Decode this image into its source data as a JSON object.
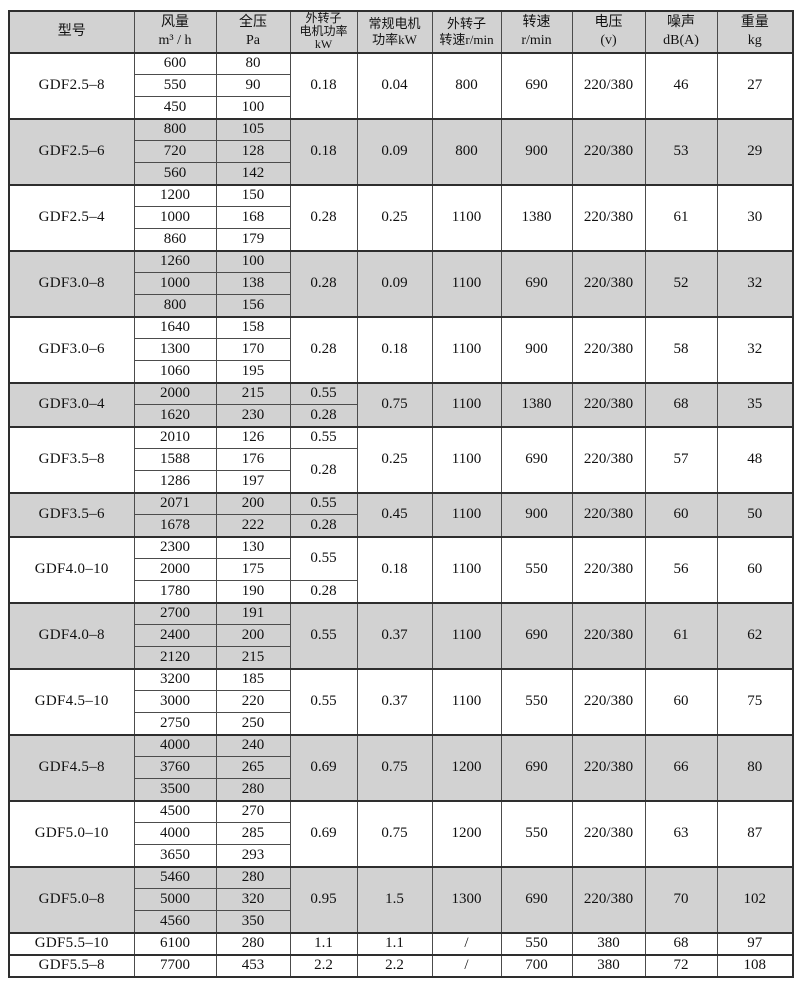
{
  "table": {
    "columns": [
      {
        "key": "model",
        "lines": [
          "型号"
        ]
      },
      {
        "key": "airflow",
        "lines": [
          "风量",
          "m³ / h"
        ]
      },
      {
        "key": "pressure",
        "lines": [
          "全压",
          "Pa"
        ]
      },
      {
        "key": "rotor_power",
        "lines": [
          "外转子",
          "电机功率",
          "kW"
        ]
      },
      {
        "key": "std_power",
        "lines": [
          "常规电机",
          "功率kW"
        ]
      },
      {
        "key": "rotor_speed",
        "lines": [
          "外转子",
          "转速r/min"
        ]
      },
      {
        "key": "speed",
        "lines": [
          "转速",
          "r/min"
        ]
      },
      {
        "key": "voltage",
        "lines": [
          "电压",
          "(v)"
        ]
      },
      {
        "key": "noise",
        "lines": [
          "噪声",
          "dB(A)"
        ]
      },
      {
        "key": "weight",
        "lines": [
          "重量",
          "kg"
        ]
      }
    ],
    "groups": [
      {
        "model": "GDF2.5–8",
        "shaded": false,
        "points": [
          {
            "airflow": "600",
            "pressure": "80"
          },
          {
            "airflow": "550",
            "pressure": "90"
          },
          {
            "airflow": "450",
            "pressure": "100"
          }
        ],
        "rotor_power": [
          {
            "value": "0.18",
            "span": 3
          }
        ],
        "std_power": "0.04",
        "rotor_speed": "800",
        "speed": "690",
        "voltage": "220/380",
        "noise": "46",
        "weight": "27"
      },
      {
        "model": "GDF2.5–6",
        "shaded": true,
        "points": [
          {
            "airflow": "800",
            "pressure": "105"
          },
          {
            "airflow": "720",
            "pressure": "128"
          },
          {
            "airflow": "560",
            "pressure": "142"
          }
        ],
        "rotor_power": [
          {
            "value": "0.18",
            "span": 3
          }
        ],
        "std_power": "0.09",
        "rotor_speed": "800",
        "speed": "900",
        "voltage": "220/380",
        "noise": "53",
        "weight": "29"
      },
      {
        "model": "GDF2.5–4",
        "shaded": false,
        "points": [
          {
            "airflow": "1200",
            "pressure": "150"
          },
          {
            "airflow": "1000",
            "pressure": "168"
          },
          {
            "airflow": "860",
            "pressure": "179"
          }
        ],
        "rotor_power": [
          {
            "value": "0.28",
            "span": 3
          }
        ],
        "std_power": "0.25",
        "rotor_speed": "1100",
        "speed": "1380",
        "voltage": "220/380",
        "noise": "61",
        "weight": "30"
      },
      {
        "model": "GDF3.0–8",
        "shaded": true,
        "points": [
          {
            "airflow": "1260",
            "pressure": "100"
          },
          {
            "airflow": "1000",
            "pressure": "138"
          },
          {
            "airflow": "800",
            "pressure": "156"
          }
        ],
        "rotor_power": [
          {
            "value": "0.28",
            "span": 3
          }
        ],
        "std_power": "0.09",
        "rotor_speed": "1100",
        "speed": "690",
        "voltage": "220/380",
        "noise": "52",
        "weight": "32"
      },
      {
        "model": "GDF3.0–6",
        "shaded": false,
        "points": [
          {
            "airflow": "1640",
            "pressure": "158"
          },
          {
            "airflow": "1300",
            "pressure": "170"
          },
          {
            "airflow": "1060",
            "pressure": "195"
          }
        ],
        "rotor_power": [
          {
            "value": "0.28",
            "span": 3
          }
        ],
        "std_power": "0.18",
        "rotor_speed": "1100",
        "speed": "900",
        "voltage": "220/380",
        "noise": "58",
        "weight": "32"
      },
      {
        "model": "GDF3.0–4",
        "shaded": true,
        "points": [
          {
            "airflow": "2000",
            "pressure": "215"
          },
          {
            "airflow": "1620",
            "pressure": "230"
          }
        ],
        "rotor_power": [
          {
            "value": "0.55",
            "span": 1
          },
          {
            "value": "0.28",
            "span": 1
          }
        ],
        "std_power": "0.75",
        "rotor_speed": "1100",
        "speed": "1380",
        "voltage": "220/380",
        "noise": "68",
        "weight": "35"
      },
      {
        "model": "GDF3.5–8",
        "shaded": false,
        "points": [
          {
            "airflow": "2010",
            "pressure": "126"
          },
          {
            "airflow": "1588",
            "pressure": "176"
          },
          {
            "airflow": "1286",
            "pressure": "197"
          }
        ],
        "rotor_power": [
          {
            "value": "0.55",
            "span": 1
          },
          {
            "value": "0.28",
            "span": 2
          }
        ],
        "std_power": "0.25",
        "rotor_speed": "1100",
        "speed": "690",
        "voltage": "220/380",
        "noise": "57",
        "weight": "48"
      },
      {
        "model": "GDF3.5–6",
        "shaded": true,
        "points": [
          {
            "airflow": "2071",
            "pressure": "200"
          },
          {
            "airflow": "1678",
            "pressure": "222"
          }
        ],
        "rotor_power": [
          {
            "value": "0.55",
            "span": 1
          },
          {
            "value": "0.28",
            "span": 1
          }
        ],
        "std_power": "0.45",
        "rotor_speed": "1100",
        "speed": "900",
        "voltage": "220/380",
        "noise": "60",
        "weight": "50"
      },
      {
        "model": "GDF4.0–10",
        "shaded": false,
        "points": [
          {
            "airflow": "2300",
            "pressure": "130"
          },
          {
            "airflow": "2000",
            "pressure": "175"
          },
          {
            "airflow": "1780",
            "pressure": "190"
          }
        ],
        "rotor_power": [
          {
            "value": "0.55",
            "span": 2
          },
          {
            "value": "0.28",
            "span": 1
          }
        ],
        "std_power": "0.18",
        "rotor_speed": "1100",
        "speed": "550",
        "voltage": "220/380",
        "noise": "56",
        "weight": "60"
      },
      {
        "model": "GDF4.0–8",
        "shaded": true,
        "points": [
          {
            "airflow": "2700",
            "pressure": "191"
          },
          {
            "airflow": "2400",
            "pressure": "200"
          },
          {
            "airflow": "2120",
            "pressure": "215"
          }
        ],
        "rotor_power": [
          {
            "value": "0.55",
            "span": 3
          }
        ],
        "std_power": "0.37",
        "rotor_speed": "1100",
        "speed": "690",
        "voltage": "220/380",
        "noise": "61",
        "weight": "62"
      },
      {
        "model": "GDF4.5–10",
        "shaded": false,
        "points": [
          {
            "airflow": "3200",
            "pressure": "185"
          },
          {
            "airflow": "3000",
            "pressure": "220"
          },
          {
            "airflow": "2750",
            "pressure": "250"
          }
        ],
        "rotor_power": [
          {
            "value": "0.55",
            "span": 3
          }
        ],
        "std_power": "0.37",
        "rotor_speed": "1100",
        "speed": "550",
        "voltage": "220/380",
        "noise": "60",
        "weight": "75"
      },
      {
        "model": "GDF4.5–8",
        "shaded": true,
        "points": [
          {
            "airflow": "4000",
            "pressure": "240"
          },
          {
            "airflow": "3760",
            "pressure": "265"
          },
          {
            "airflow": "3500",
            "pressure": "280"
          }
        ],
        "rotor_power": [
          {
            "value": "0.69",
            "span": 3
          }
        ],
        "std_power": "0.75",
        "rotor_speed": "1200",
        "speed": "690",
        "voltage": "220/380",
        "noise": "66",
        "weight": "80"
      },
      {
        "model": "GDF5.0–10",
        "shaded": false,
        "points": [
          {
            "airflow": "4500",
            "pressure": "270"
          },
          {
            "airflow": "4000",
            "pressure": "285"
          },
          {
            "airflow": "3650",
            "pressure": "293"
          }
        ],
        "rotor_power": [
          {
            "value": "0.69",
            "span": 3
          }
        ],
        "std_power": "0.75",
        "rotor_speed": "1200",
        "speed": "550",
        "voltage": "220/380",
        "noise": "63",
        "weight": "87"
      },
      {
        "model": "GDF5.0–8",
        "shaded": true,
        "points": [
          {
            "airflow": "5460",
            "pressure": "280"
          },
          {
            "airflow": "5000",
            "pressure": "320"
          },
          {
            "airflow": "4560",
            "pressure": "350"
          }
        ],
        "rotor_power": [
          {
            "value": "0.95",
            "span": 3
          }
        ],
        "std_power": "1.5",
        "rotor_speed": "1300",
        "speed": "690",
        "voltage": "220/380",
        "noise": "70",
        "weight": "102"
      },
      {
        "model": "GDF5.5–10",
        "shaded": false,
        "points": [
          {
            "airflow": "6100",
            "pressure": "280"
          }
        ],
        "rotor_power": [
          {
            "value": "1.1",
            "span": 1
          }
        ],
        "std_power": "1.1",
        "rotor_speed": "/",
        "speed": "550",
        "voltage": "380",
        "noise": "68",
        "weight": "97"
      },
      {
        "model": "GDF5.5–8",
        "shaded": false,
        "points": [
          {
            "airflow": "7700",
            "pressure": "453"
          }
        ],
        "rotor_power": [
          {
            "value": "2.2",
            "span": 1
          }
        ],
        "std_power": "2.2",
        "rotor_speed": "/",
        "speed": "700",
        "voltage": "380",
        "noise": "72",
        "weight": "108"
      }
    ]
  }
}
